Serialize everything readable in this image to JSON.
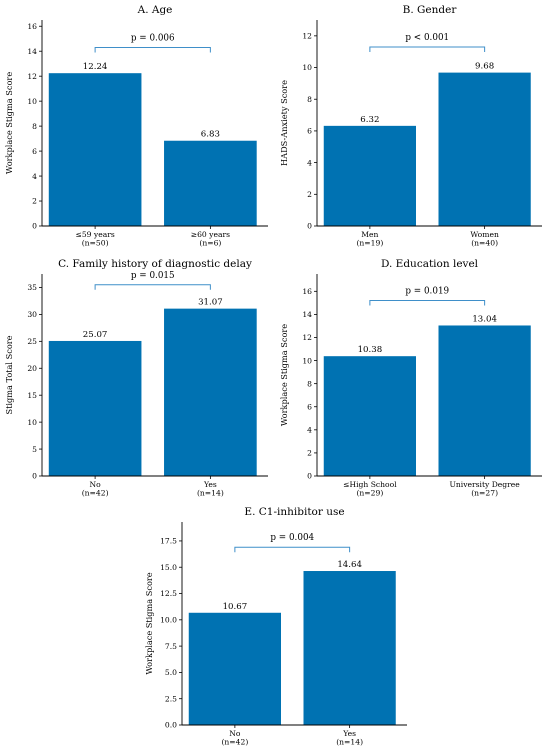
{
  "colors": {
    "bar": "#0072B2",
    "bracket": "#3f8fc9",
    "axis": "#000000"
  },
  "chart_data": [
    {
      "type": "bar",
      "title": "A. Age",
      "ylabel": "Workplace Stigma Score",
      "categories": [
        "≤59 years",
        "≥60 years"
      ],
      "category_ns": [
        "(n=50)",
        "(n=6)"
      ],
      "values": [
        12.24,
        6.83
      ],
      "value_labels": [
        "12.24",
        "6.83"
      ],
      "ylim": [
        0,
        16.5
      ],
      "yticks": [
        0,
        2,
        4,
        6,
        8,
        10,
        12,
        14,
        16
      ],
      "ytick_labels": [
        "0",
        "2",
        "4",
        "6",
        "8",
        "10",
        "12",
        "14",
        "16"
      ],
      "p_value": "p = 0.006",
      "bracket_y": 14.3
    },
    {
      "type": "bar",
      "title": "B. Gender",
      "ylabel": "HADS-Anxiety Score",
      "categories": [
        "Men",
        "Women"
      ],
      "category_ns": [
        "(n=19)",
        "(n=40)"
      ],
      "values": [
        6.32,
        9.68
      ],
      "value_labels": [
        "6.32",
        "9.68"
      ],
      "ylim": [
        0,
        13
      ],
      "yticks": [
        0,
        2,
        4,
        6,
        8,
        10,
        12
      ],
      "ytick_labels": [
        "0",
        "2",
        "4",
        "6",
        "8",
        "10",
        "12"
      ],
      "p_value": "p < 0.001",
      "bracket_y": 11.3
    },
    {
      "type": "bar",
      "title": "C. Family history of diagnostic delay",
      "ylabel": "Stigma Total Score",
      "categories": [
        "No",
        "Yes"
      ],
      "category_ns": [
        "(n=42)",
        "(n=14)"
      ],
      "values": [
        25.07,
        31.07
      ],
      "value_labels": [
        "25.07",
        "31.07"
      ],
      "ylim": [
        0,
        37.5
      ],
      "yticks": [
        0,
        5,
        10,
        15,
        20,
        25,
        30,
        35
      ],
      "ytick_labels": [
        "0",
        "5",
        "10",
        "15",
        "20",
        "25",
        "30",
        "35"
      ],
      "p_value": "p = 0.015",
      "bracket_y": 35.5
    },
    {
      "type": "bar",
      "title": "D. Education level",
      "ylabel": "Workplace Stigma Score",
      "categories": [
        "≤High School",
        "University Degree"
      ],
      "category_ns": [
        "(n=29)",
        "(n=27)"
      ],
      "values": [
        10.38,
        13.04
      ],
      "value_labels": [
        "10.38",
        "13.04"
      ],
      "ylim": [
        0,
        17.5
      ],
      "yticks": [
        0,
        2,
        4,
        6,
        8,
        10,
        12,
        14,
        16
      ],
      "ytick_labels": [
        "0",
        "2",
        "4",
        "6",
        "8",
        "10",
        "12",
        "14",
        "16"
      ],
      "p_value": "p = 0.019",
      "bracket_y": 15.2
    },
    {
      "type": "bar",
      "title": "E. C1-inhibitor use",
      "ylabel": "Workplace Stigma Score",
      "categories": [
        "No",
        "Yes"
      ],
      "category_ns": [
        "(n=42)",
        "(n=14)"
      ],
      "values": [
        10.67,
        14.64
      ],
      "value_labels": [
        "10.67",
        "14.64"
      ],
      "ylim": [
        0,
        19.3
      ],
      "yticks": [
        0,
        2.5,
        5.0,
        7.5,
        10.0,
        12.5,
        15.0,
        17.5
      ],
      "ytick_labels": [
        "0.0",
        "2.5",
        "5.0",
        "7.5",
        "10.0",
        "12.5",
        "15.0",
        "17.5"
      ],
      "p_value": "p = 0.004",
      "bracket_y": 16.9
    }
  ]
}
